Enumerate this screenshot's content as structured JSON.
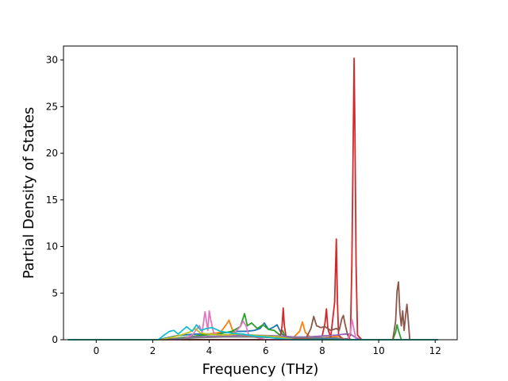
{
  "chart_data": {
    "type": "line",
    "title": "",
    "xlabel": "Frequency (THz)",
    "ylabel": "Partial Density of States",
    "xlim": [
      -1.16,
      12.78
    ],
    "ylim": [
      0,
      31.5
    ],
    "xticks": [
      0,
      2,
      4,
      6,
      8,
      10,
      12
    ],
    "yticks": [
      0,
      5,
      10,
      15,
      20,
      25,
      30
    ],
    "grid": false,
    "legend": "none",
    "series": [
      {
        "color": "#1f77b4",
        "x": [
          -1.0,
          2.2,
          2.5,
          2.8,
          3.1,
          3.5,
          3.9,
          4.3,
          4.7,
          5.0,
          5.3,
          5.6,
          5.8,
          5.95,
          6.1,
          6.25,
          6.4,
          6.55,
          6.7,
          6.9,
          7.2,
          7.6,
          7.9,
          8.2,
          8.5,
          8.8,
          12.1
        ],
        "y": [
          0,
          0,
          0.2,
          0.4,
          0.5,
          0.6,
          0.6,
          0.7,
          0.8,
          0.9,
          0.9,
          1.0,
          1.2,
          1.8,
          1.1,
          1.3,
          1.6,
          0.7,
          0.3,
          0.1,
          0.05,
          0.05,
          0.05,
          0.05,
          0.05,
          0,
          0
        ]
      },
      {
        "color": "#ff7f0e",
        "x": [
          -1.0,
          2.2,
          3.0,
          3.6,
          4.0,
          4.4,
          4.6,
          4.7,
          4.85,
          5.2,
          5.8,
          6.5,
          7.0,
          7.2,
          7.3,
          7.4,
          7.6,
          8.0,
          8.3,
          8.6,
          8.8,
          12.1
        ],
        "y": [
          0,
          0,
          0.2,
          0.4,
          0.6,
          0.8,
          1.6,
          2.1,
          0.8,
          0.4,
          0.4,
          0.3,
          0.3,
          0.9,
          1.9,
          0.8,
          0.2,
          0.2,
          0.3,
          0.4,
          0,
          0
        ]
      },
      {
        "color": "#2ca02c",
        "x": [
          -1.0,
          2.5,
          3.2,
          3.8,
          4.3,
          4.8,
          5.1,
          5.25,
          5.35,
          5.5,
          5.7,
          5.9,
          6.1,
          6.3,
          6.5,
          6.6,
          6.7,
          6.85,
          7.0,
          10.5,
          10.6,
          10.65,
          10.7,
          10.8,
          12.1
        ],
        "y": [
          0,
          0,
          0.3,
          0.5,
          0.6,
          0.9,
          1.4,
          2.8,
          1.5,
          1.8,
          1.2,
          1.6,
          1.1,
          1.0,
          0.5,
          1.0,
          0.2,
          0,
          0,
          0,
          0.8,
          1.6,
          1.0,
          0,
          0
        ]
      },
      {
        "color": "#d62728",
        "x": [
          -1.0,
          6.5,
          6.58,
          6.62,
          6.66,
          6.72,
          6.8,
          7.2,
          7.5,
          7.8,
          8.0,
          8.1,
          8.15,
          8.2,
          8.3,
          8.44,
          8.5,
          8.54,
          8.58,
          8.7,
          8.9,
          9.0,
          9.05,
          9.1,
          9.13,
          9.16,
          9.2,
          9.25,
          9.4,
          12.1
        ],
        "y": [
          0,
          0,
          1.5,
          3.4,
          1.5,
          0.3,
          0.1,
          0.1,
          0.1,
          0.3,
          0.4,
          1.8,
          3.3,
          1.2,
          0.2,
          4.0,
          10.8,
          4.0,
          0.5,
          0.1,
          0.1,
          0.5,
          8.0,
          22.0,
          30.2,
          22.0,
          8.0,
          0.5,
          0,
          0
        ]
      },
      {
        "color": "#9467bd",
        "x": [
          -1.0,
          2.5,
          3.5,
          4.5,
          5.5,
          6.5,
          7.0,
          7.5,
          8.0,
          8.5,
          8.8,
          9.0,
          9.2,
          9.4,
          12.1
        ],
        "y": [
          0,
          0,
          0.3,
          0.4,
          0.5,
          0.4,
          0.3,
          0.3,
          0.4,
          0.5,
          0.6,
          0.6,
          0.2,
          0,
          0
        ]
      },
      {
        "color": "#8c564b",
        "x": [
          -1.0,
          7.4,
          7.6,
          7.7,
          7.8,
          7.95,
          8.1,
          8.3,
          8.5,
          8.6,
          8.7,
          8.75,
          8.8,
          8.9,
          9.0,
          10.5,
          10.6,
          10.65,
          10.7,
          10.75,
          10.8,
          10.85,
          10.9,
          10.95,
          11.0,
          11.05,
          11.1,
          12.1
        ],
        "y": [
          0,
          0,
          1.2,
          2.5,
          1.5,
          1.3,
          1.4,
          1.0,
          1.2,
          1.0,
          2.3,
          2.6,
          1.8,
          0.5,
          0,
          0,
          2.0,
          5.2,
          6.2,
          3.0,
          1.5,
          3.1,
          1.0,
          2.5,
          3.8,
          2.0,
          0,
          0
        ]
      },
      {
        "color": "#e377c2",
        "x": [
          -1.0,
          3.0,
          3.4,
          3.65,
          3.75,
          3.85,
          3.95,
          4.0,
          4.05,
          4.15,
          4.3,
          4.8,
          5.1,
          5.2,
          5.3,
          5.4,
          5.6,
          6.0,
          8.9,
          9.0,
          9.05,
          9.1,
          9.2,
          12.1
        ],
        "y": [
          0,
          0,
          0.5,
          1.5,
          0.8,
          3.0,
          1.0,
          3.1,
          2.2,
          0.8,
          0.5,
          0.5,
          1.4,
          2.0,
          1.5,
          0.5,
          0.3,
          0,
          0,
          0.8,
          2.2,
          1.5,
          0,
          0
        ]
      },
      {
        "color": "#7f7f7f",
        "x": [
          -1.0,
          2.5,
          3.5,
          4.5,
          5.5,
          6.5,
          7.5,
          8.5,
          9.0,
          12.1
        ],
        "y": [
          0,
          0,
          0.2,
          0.3,
          0.3,
          0.2,
          0.2,
          0.2,
          0,
          0
        ]
      },
      {
        "color": "#bcbd22",
        "x": [
          -1.0,
          2.3,
          3.0,
          3.3,
          3.5,
          3.7,
          4.0,
          4.5,
          5.0,
          5.5,
          6.0,
          6.5,
          7.0,
          12.1
        ],
        "y": [
          0,
          0,
          0.5,
          0.8,
          1.2,
          0.7,
          0.6,
          0.5,
          0.6,
          0.5,
          0.4,
          0.3,
          0,
          0
        ]
      },
      {
        "color": "#17becf",
        "x": [
          -1.0,
          2.2,
          2.4,
          2.6,
          2.75,
          2.9,
          3.05,
          3.2,
          3.4,
          3.55,
          3.7,
          3.9,
          4.1,
          4.4,
          4.8,
          5.2,
          5.6,
          6.0,
          6.5,
          7.0,
          12.1
        ],
        "y": [
          0,
          0,
          0.5,
          0.9,
          1.0,
          0.6,
          1.0,
          1.4,
          0.9,
          1.6,
          1.0,
          1.2,
          1.3,
          0.9,
          0.7,
          0.6,
          0.4,
          0.3,
          0.1,
          0,
          0
        ]
      }
    ]
  }
}
